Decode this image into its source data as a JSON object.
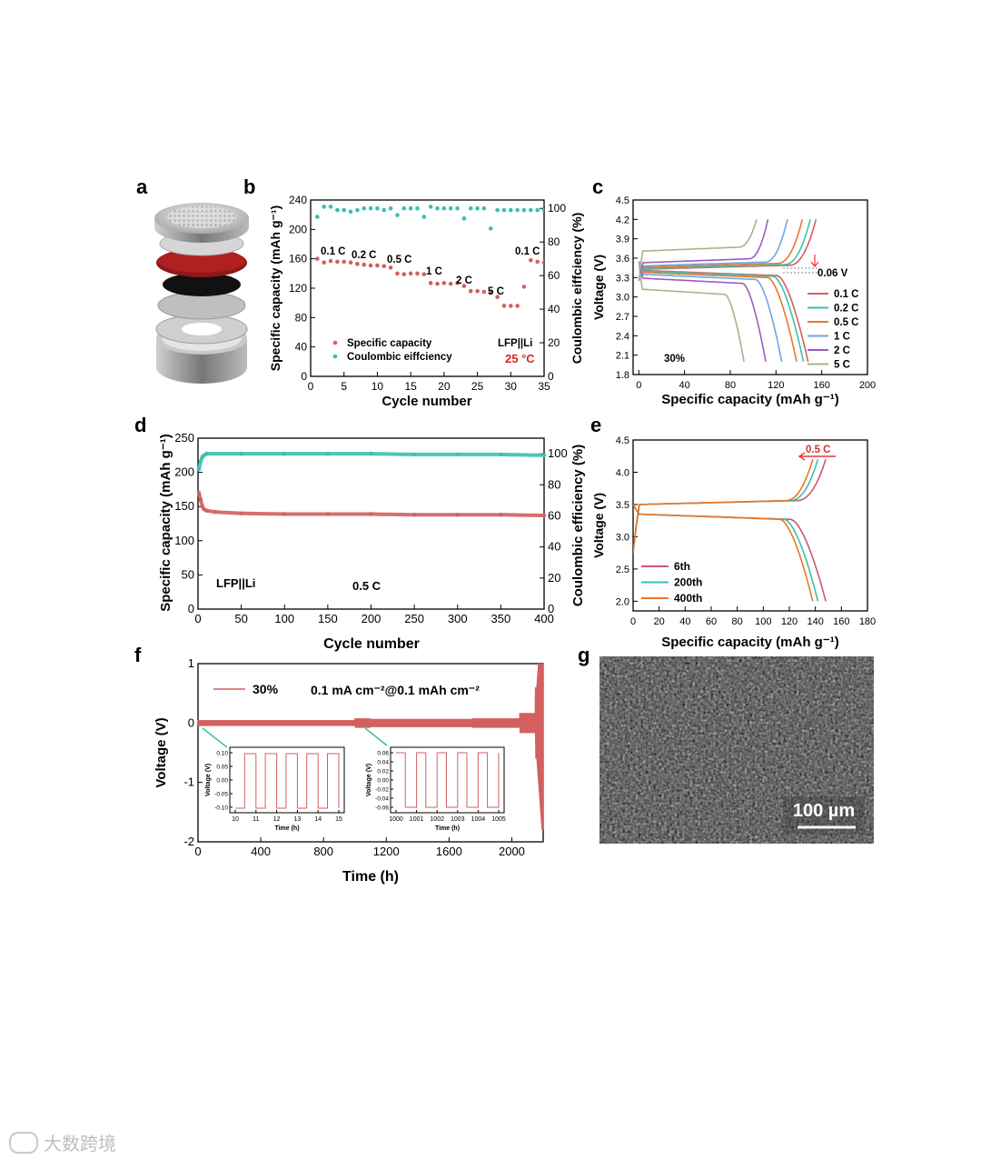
{
  "panels": {
    "a": "a",
    "b": "b",
    "c": "c",
    "d": "d",
    "e": "e",
    "f": "f",
    "g": "g"
  },
  "watermark": "大数跨境",
  "colors": {
    "red": "#d35f5f",
    "teal": "#3bbfb0",
    "orange": "#e8782a",
    "blue": "#6fa6e0",
    "purple": "#9a5cc2",
    "olive": "#a8b48a",
    "pink": "#c85a6e",
    "sem_bg": "#3a3a3a"
  },
  "chart_data": [
    {
      "id": "b",
      "type": "scatter",
      "xlabel": "Cycle number",
      "ylabel": "Specific capacity (mAh g⁻¹)",
      "y2label": "Coulombic eiffciency (%)",
      "xlim": [
        0,
        35
      ],
      "ylim": [
        0,
        240
      ],
      "y2lim": [
        0,
        105
      ],
      "xticks": [
        0,
        5,
        10,
        15,
        20,
        25,
        30,
        35
      ],
      "yticks": [
        0,
        40,
        80,
        120,
        160,
        200,
        240
      ],
      "y2ticks": [
        0,
        20,
        40,
        60,
        80,
        100
      ],
      "series": [
        {
          "name": "Specific capacity",
          "axis": "left",
          "color": "#d35f5f",
          "x": [
            1,
            2,
            3,
            4,
            5,
            6,
            7,
            8,
            9,
            10,
            11,
            12,
            13,
            14,
            15,
            16,
            17,
            18,
            19,
            20,
            21,
            22,
            23,
            24,
            25,
            26,
            27,
            28,
            29,
            30,
            31,
            32,
            33,
            34,
            35
          ],
          "y": [
            160,
            155,
            157,
            156,
            156,
            155,
            153,
            152,
            151,
            151,
            150,
            148,
            140,
            139,
            140,
            140,
            139,
            127,
            126,
            127,
            126,
            127,
            123,
            116,
            116,
            115,
            114,
            108,
            96,
            96,
            96,
            122,
            158,
            156,
            155
          ]
        },
        {
          "name": "Coulombic eiffciency",
          "axis": "right",
          "color": "#3bbfb0",
          "x": [
            1,
            2,
            3,
            4,
            5,
            6,
            7,
            8,
            9,
            10,
            11,
            12,
            13,
            14,
            15,
            16,
            17,
            18,
            19,
            20,
            21,
            22,
            23,
            24,
            25,
            26,
            27,
            28,
            29,
            30,
            31,
            32,
            33,
            34,
            35
          ],
          "y": [
            95,
            101,
            101,
            99,
            99,
            98,
            99,
            100,
            100,
            100,
            99,
            100,
            96,
            100,
            100,
            100,
            95,
            101,
            100,
            100,
            100,
            100,
            94,
            100,
            100,
            100,
            88,
            99,
            99,
            99,
            99,
            99,
            99,
            99,
            99
          ]
        }
      ],
      "annotations": [
        "0.1 C",
        "0.2 C",
        "0.5 C",
        "1 C",
        "2 C",
        "5 C",
        "0.1 C"
      ],
      "note": "LFP||Li",
      "temp": "25 °C"
    },
    {
      "id": "c",
      "type": "line",
      "xlabel": "Specific capacity (mAh g⁻¹)",
      "ylabel": "Voltage (V)",
      "xlim": [
        -5,
        200
      ],
      "ylim": [
        1.8,
        4.5
      ],
      "xticks": [
        0,
        40,
        80,
        120,
        160,
        200
      ],
      "yticks": [
        1.8,
        2.1,
        2.4,
        2.7,
        3.0,
        3.3,
        3.6,
        3.9,
        4.2,
        4.5
      ],
      "series": [
        {
          "name": "0.1 C",
          "color": "#d35f5f",
          "charge_end": 155,
          "discharge_end": 148,
          "charge_plateau": 3.45,
          "discharge_plateau": 3.39
        },
        {
          "name": "0.2 C",
          "color": "#3bbfb0",
          "charge_end": 150,
          "discharge_end": 144,
          "charge_plateau": 3.46,
          "discharge_plateau": 3.38
        },
        {
          "name": "0.5 C",
          "color": "#e8782a",
          "charge_end": 143,
          "discharge_end": 138,
          "charge_plateau": 3.48,
          "discharge_plateau": 3.36
        },
        {
          "name": "1 C",
          "color": "#6fa6e0",
          "charge_end": 130,
          "discharge_end": 125,
          "charge_plateau": 3.5,
          "discharge_plateau": 3.33
        },
        {
          "name": "2 C",
          "color": "#9a5cc2",
          "charge_end": 113,
          "discharge_end": 111,
          "charge_plateau": 3.55,
          "discharge_plateau": 3.27
        },
        {
          "name": "5 C",
          "color": "#a8b48a",
          "charge_end": 103,
          "discharge_end": 92,
          "charge_plateau": 3.73,
          "discharge_plateau": 3.1
        }
      ],
      "annotations": [
        "0.06 V",
        "30%"
      ]
    },
    {
      "id": "d",
      "type": "scatter",
      "xlabel": "Cycle number",
      "ylabel": "Specific capacity (mAh g⁻¹)",
      "y2label": "Coulombic efficiency (%)",
      "xlim": [
        0,
        400
      ],
      "ylim": [
        0,
        250
      ],
      "y2lim": [
        0,
        110
      ],
      "xticks": [
        0,
        50,
        100,
        150,
        200,
        250,
        300,
        350,
        400
      ],
      "yticks": [
        0,
        50,
        100,
        150,
        200,
        250
      ],
      "y2ticks": [
        0,
        20,
        40,
        60,
        80,
        100
      ],
      "series": [
        {
          "name": "Specific capacity",
          "axis": "left",
          "color": "#d35f5f",
          "x": [
            1,
            3,
            5,
            7,
            10,
            20,
            50,
            100,
            150,
            200,
            250,
            300,
            350,
            400
          ],
          "y": [
            170,
            160,
            150,
            146,
            144,
            142,
            140,
            139,
            139,
            139,
            138,
            138,
            138,
            137
          ]
        },
        {
          "name": "Coulombic efficiency",
          "axis": "right",
          "color": "#3bbfb0",
          "x": [
            1,
            3,
            5,
            7,
            10,
            50,
            100,
            150,
            200,
            250,
            300,
            350,
            400
          ],
          "y": [
            90,
            95,
            98,
            99,
            100,
            100,
            100,
            100,
            100,
            99.5,
            99.5,
            99.5,
            99
          ]
        }
      ],
      "note": "LFP||Li",
      "rate": "0.5 C"
    },
    {
      "id": "e",
      "type": "line",
      "xlabel": "Specific capacity (mAh g⁻¹)",
      "ylabel": "Voltage (V)",
      "xlim": [
        0,
        180
      ],
      "ylim": [
        1.85,
        4.5
      ],
      "xticks": [
        0,
        20,
        40,
        60,
        80,
        100,
        120,
        140,
        160,
        180
      ],
      "yticks": [
        2.0,
        2.5,
        3.0,
        3.5,
        4.0,
        4.5
      ],
      "series": [
        {
          "name": "6th",
          "color": "#c85a6e",
          "charge_end": 148,
          "discharge_end": 148
        },
        {
          "name": "200th",
          "color": "#3bbfb0",
          "charge_end": 142,
          "discharge_end": 142
        },
        {
          "name": "400th",
          "color": "#e8782a",
          "charge_end": 138,
          "discharge_end": 138
        }
      ],
      "annotations": [
        "0.5 C"
      ]
    },
    {
      "id": "f",
      "type": "line",
      "xlabel": "Time (h)",
      "ylabel": "Voltage (V)",
      "xlim": [
        0,
        2200
      ],
      "ylim": [
        -2,
        1
      ],
      "xticks": [
        0,
        400,
        800,
        1200,
        1600,
        2000
      ],
      "yticks": [
        -2,
        -1,
        0,
        1
      ],
      "legend": "30%",
      "condition": "0.1 mA cm⁻²@0.1 mAh cm⁻²",
      "inset1": {
        "xlabel": "Time (h)",
        "ylabel": "Voltage (V)",
        "xticks": [
          10,
          11,
          12,
          13,
          14,
          15
        ],
        "yticks": [
          "0.10",
          "0.05",
          "0.00",
          "-0.05",
          "-0.10"
        ]
      },
      "inset2": {
        "xlabel": "Time (h)",
        "ylabel": "Voltage (V)",
        "xticks": [
          1000,
          1001,
          1002,
          1003,
          1004,
          1005
        ],
        "yticks": [
          "0.06",
          "0.04",
          "0.02",
          "0.00",
          "-0.02",
          "-0.04",
          "-0.06"
        ]
      }
    }
  ],
  "sem": {
    "scale_label": "100 µm"
  }
}
